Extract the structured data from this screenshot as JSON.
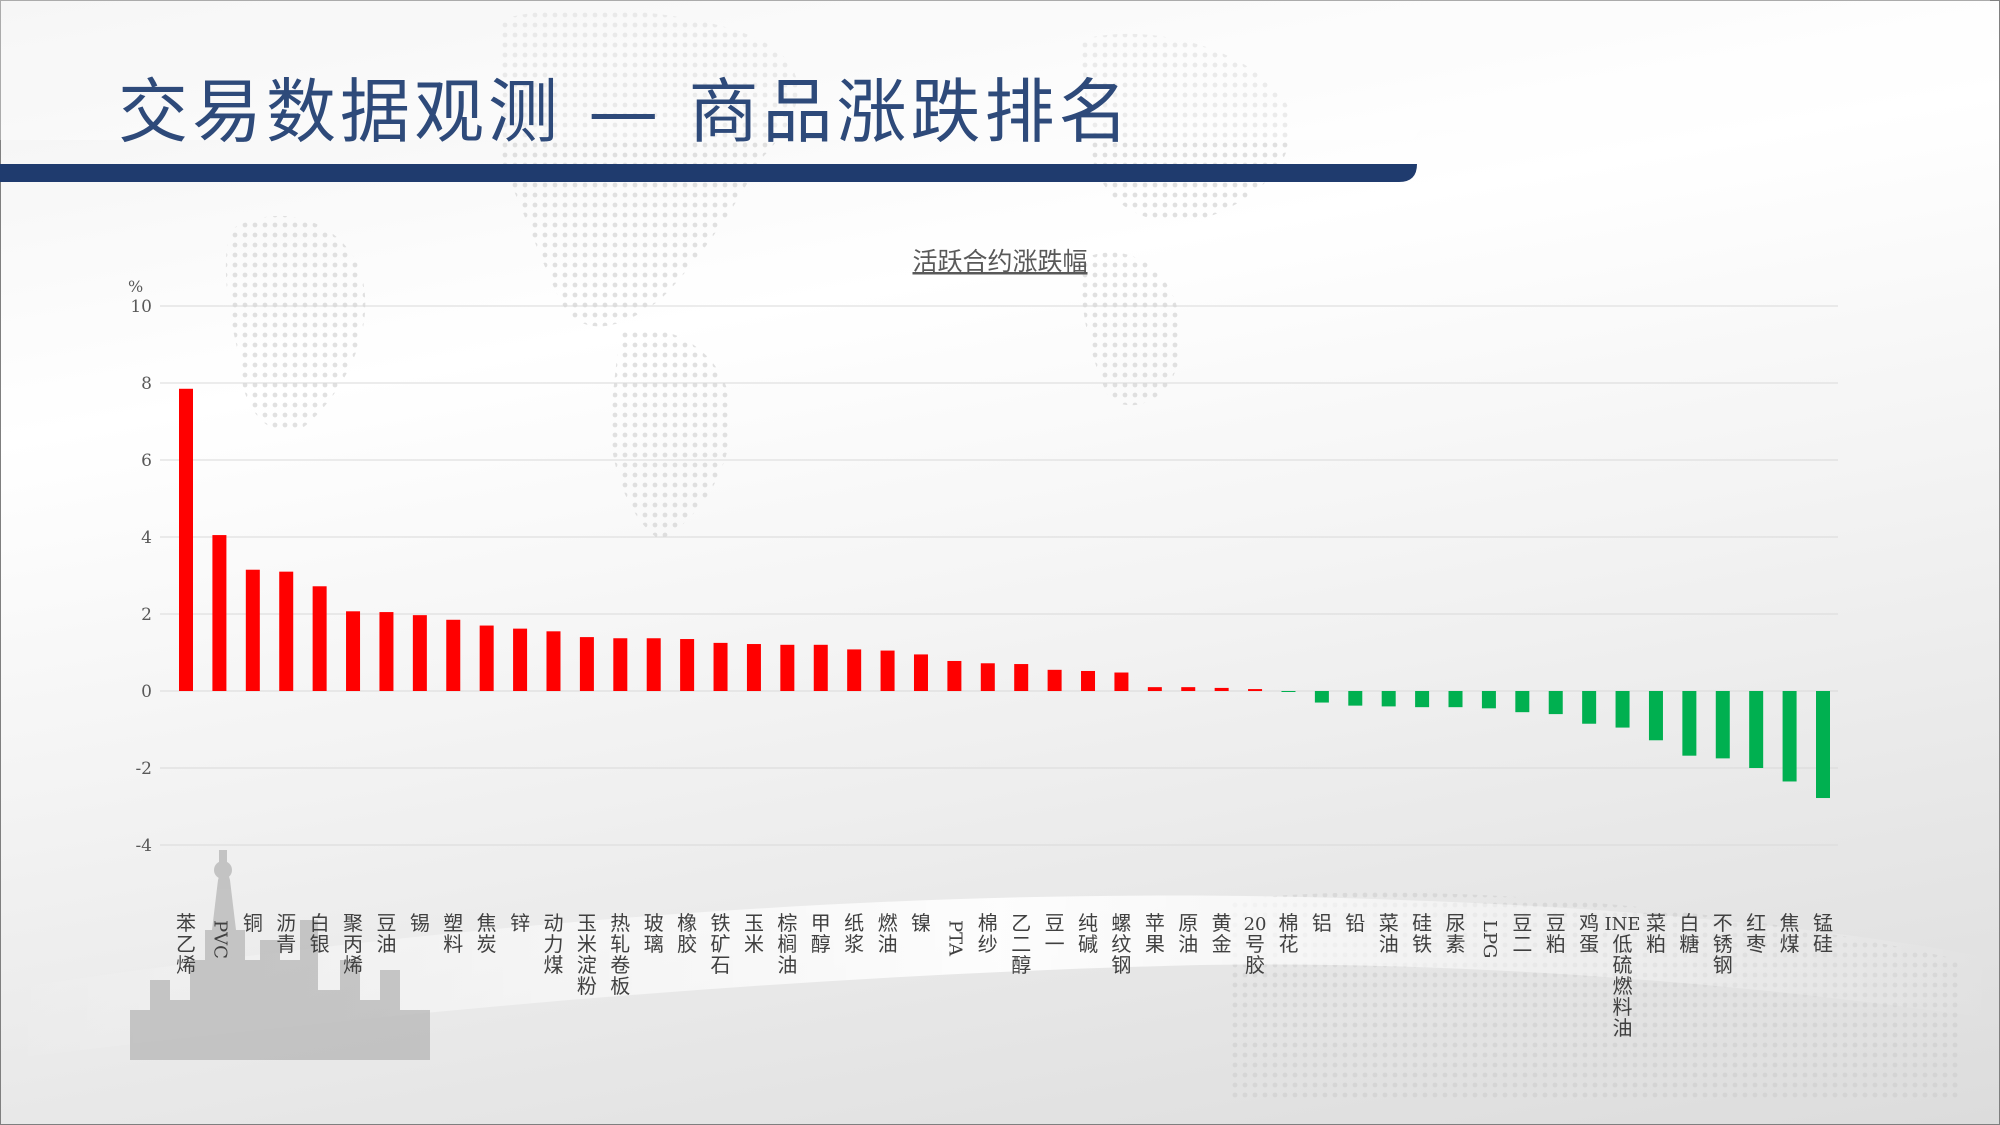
{
  "slide": {
    "title": "交易数据观测 — 商品涨跌排名"
  },
  "colors": {
    "title": "#2e4a7a",
    "header_bar": "#1f3b6e",
    "positive": "#ff0000",
    "negative": "#00b050",
    "grid": "#d9d9d9"
  },
  "chart_data": {
    "type": "bar",
    "title": "活跃合约涨跌幅",
    "ylabel": "%",
    "ylim": [
      -4,
      10
    ],
    "yticks": [
      -4,
      -2,
      0,
      2,
      4,
      6,
      8,
      10
    ],
    "grid": true,
    "categories": [
      "苯乙烯",
      "PVC",
      "铜",
      "沥青",
      "白银",
      "聚丙烯",
      "豆油",
      "锡",
      "塑料",
      "焦炭",
      "锌",
      "动力煤",
      "玉米淀粉",
      "热轧卷板",
      "玻璃",
      "橡胶",
      "铁矿石",
      "玉米",
      "棕榈油",
      "甲醇",
      "纸浆",
      "燃油",
      "镍",
      "PTA",
      "棉纱",
      "乙二醇",
      "豆一",
      "纯碱",
      "螺纹钢",
      "苹果",
      "原油",
      "黄金",
      "20号胶",
      "棉花",
      "铝",
      "铅",
      "菜油",
      "硅铁",
      "尿素",
      "LPG",
      "豆二",
      "豆粕",
      "鸡蛋",
      "INE低硫燃料油",
      "菜粕",
      "白糖",
      "不锈钢",
      "红枣",
      "焦煤",
      "锰硅"
    ],
    "values": [
      7.85,
      4.05,
      3.15,
      3.1,
      2.72,
      2.07,
      2.05,
      1.97,
      1.85,
      1.7,
      1.62,
      1.55,
      1.4,
      1.37,
      1.37,
      1.35,
      1.25,
      1.22,
      1.2,
      1.2,
      1.08,
      1.05,
      0.95,
      0.78,
      0.72,
      0.7,
      0.55,
      0.52,
      0.48,
      0.1,
      0.1,
      0.08,
      0.05,
      -0.02,
      -0.3,
      -0.38,
      -0.4,
      -0.42,
      -0.42,
      -0.45,
      -0.55,
      -0.6,
      -0.85,
      -0.95,
      -1.28,
      -1.68,
      -1.75,
      -2.0,
      -2.35,
      -2.78
    ]
  }
}
